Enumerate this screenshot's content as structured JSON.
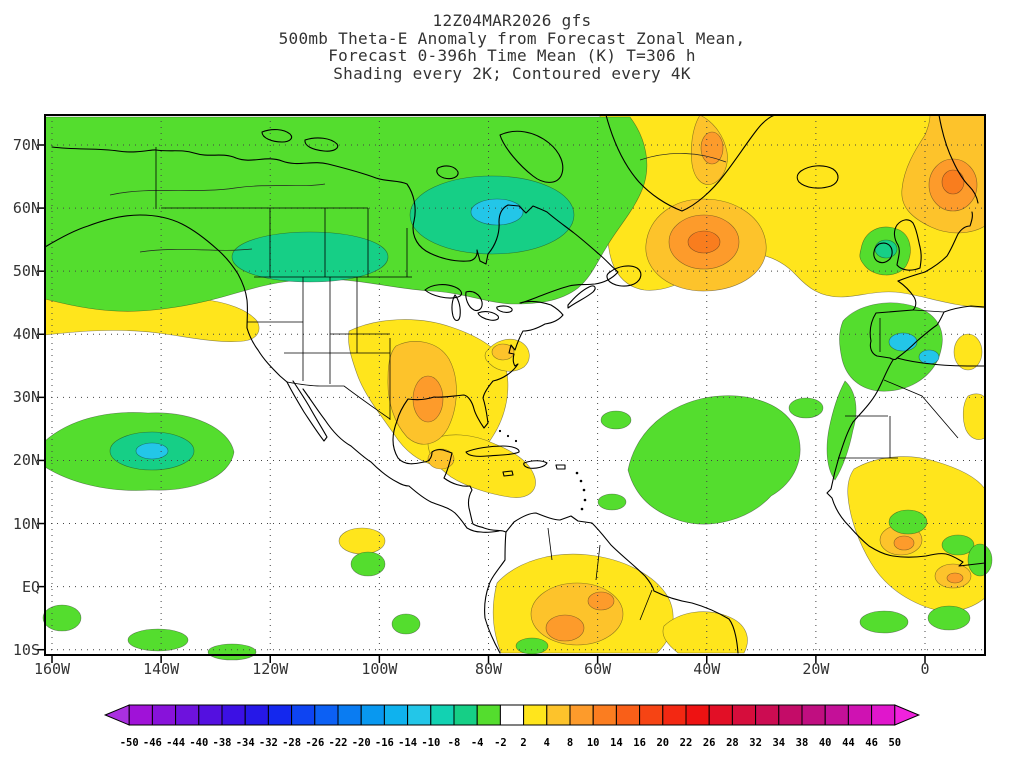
{
  "title": {
    "line1": "12Z04MAR2026 gfs",
    "line2": "500mb Theta-E Anomaly from Forecast Zonal Mean,",
    "line3": "Forecast 0-396h Time Mean (K) T=306 h",
    "line4": "Shading every 2K; Contoured every 4K"
  },
  "map": {
    "lat_labels": [
      "70N",
      "60N",
      "50N",
      "40N",
      "30N",
      "20N",
      "10N",
      "EQ",
      "10S"
    ],
    "lon_labels": [
      "160W",
      "140W",
      "120W",
      "100W",
      "80W",
      "60W",
      "40W",
      "20W",
      "0"
    ]
  },
  "palette": {
    "green": "#54dd2e",
    "teal": "#16cf86",
    "cyan": "#23c6e8",
    "yellow": "#ffe51c",
    "gold": "#fdc32b",
    "orange": "#fd9b2b",
    "deep_orange": "#f97d1e",
    "white": "#ffffff"
  },
  "colorbar": {
    "labels": [
      "-50",
      "-46",
      "-44",
      "-40",
      "-38",
      "-34",
      "-32",
      "-28",
      "-26",
      "-22",
      "-20",
      "-16",
      "-14",
      "-10",
      "-8",
      "-4",
      "-2",
      "2",
      "4",
      "8",
      "10",
      "14",
      "16",
      "20",
      "22",
      "26",
      "28",
      "32",
      "34",
      "38",
      "40",
      "44",
      "46",
      "50"
    ],
    "segment_colors": [
      "#a012d8",
      "#8812da",
      "#6e12dd",
      "#5410e0",
      "#3c10e4",
      "#2618e8",
      "#1428ee",
      "#0e44f2",
      "#0c60f4",
      "#0a7cf2",
      "#0898f0",
      "#0fb2ee",
      "#23c6e8",
      "#12d2b2",
      "#16cf86",
      "#54dd2e",
      "#ffffff",
      "#ffe51c",
      "#fdc32b",
      "#fd9b2b",
      "#fb7d20",
      "#f95f18",
      "#f64414",
      "#f32812",
      "#ee1212",
      "#e20f26",
      "#d60d3c",
      "#cc0c52",
      "#c40c68",
      "#c00e80",
      "#c41098",
      "#cf12b2",
      "#e016cc"
    ],
    "arrow_left_color": "#aa30e0",
    "arrow_right_color": "#f022dd"
  },
  "chart_data": {
    "type": "heatmap",
    "title": "500mb Theta-E Anomaly from Forecast Zonal Mean, Forecast 0-396h Time Mean (K) T=306 h",
    "model_run": "12Z04MAR2026 gfs",
    "shading_note": "Shading every 2K; Contoured every 4K",
    "units": "K",
    "x": {
      "label": "longitude",
      "ticks": [
        "160W",
        "140W",
        "120W",
        "100W",
        "80W",
        "60W",
        "40W",
        "20W",
        "0"
      ]
    },
    "y": {
      "label": "latitude",
      "ticks": [
        "70N",
        "60N",
        "50N",
        "40N",
        "30N",
        "20N",
        "10N",
        "EQ",
        "10S"
      ]
    },
    "grid": "dotted graticule every 10 deg latitude / 20 deg longitude",
    "legend_position": "bottom",
    "colorbar_levels": [
      -50,
      -46,
      -44,
      -40,
      -38,
      -34,
      -32,
      -28,
      -26,
      -22,
      -20,
      -16,
      -14,
      -10,
      -8,
      -4,
      -2,
      2,
      4,
      8,
      10,
      14,
      16,
      20,
      22,
      26,
      28,
      32,
      34,
      38,
      40,
      44,
      46,
      50
    ],
    "shading_interval_K": 2,
    "contour_interval_K": 4,
    "anomaly_features": [
      {
        "region": "Alaska, western and central Canada, Hudson Bay / Quebec",
        "anomaly": "negative",
        "approx_shading_K": "-2 to -10"
      },
      {
        "region": "Central North Atlantic southeast of Greenland (~55N 40W)",
        "anomaly": "positive",
        "approx_shading_K": "+2 to +12"
      },
      {
        "region": "Northern Europe / Scandinavia (top right corner)",
        "anomaly": "positive",
        "approx_shading_K": "+2 to +12"
      },
      {
        "region": "South-central United States and Gulf of Mexico",
        "anomaly": "positive",
        "approx_shading_K": "+2 to +10"
      },
      {
        "region": "Mid-latitude Northeast Pacific band (~42-46N, west of North America)",
        "anomaly": "positive",
        "approx_shading_K": "+2 to +4"
      },
      {
        "region": "Subtropical Northeast Pacific (~20-25N 140W)",
        "anomaly": "negative",
        "approx_shading_K": "-2 to -10"
      },
      {
        "region": "Subtropical central Atlantic (~15-30N, 35-60W)",
        "anomaly": "negative",
        "approx_shading_K": "-2 to -6"
      },
      {
        "region": "Iberia and nearby Atlantic, British Isles",
        "anomaly": "negative",
        "approx_shading_K": "-2 to -12"
      },
      {
        "region": "Northern South America (Colombia/Venezuela)",
        "anomaly": "positive",
        "approx_shading_K": "+2 to +10"
      },
      {
        "region": "West Africa tropics",
        "anomaly": "mixed",
        "approx_shading_K": "-4 to +10"
      }
    ]
  }
}
